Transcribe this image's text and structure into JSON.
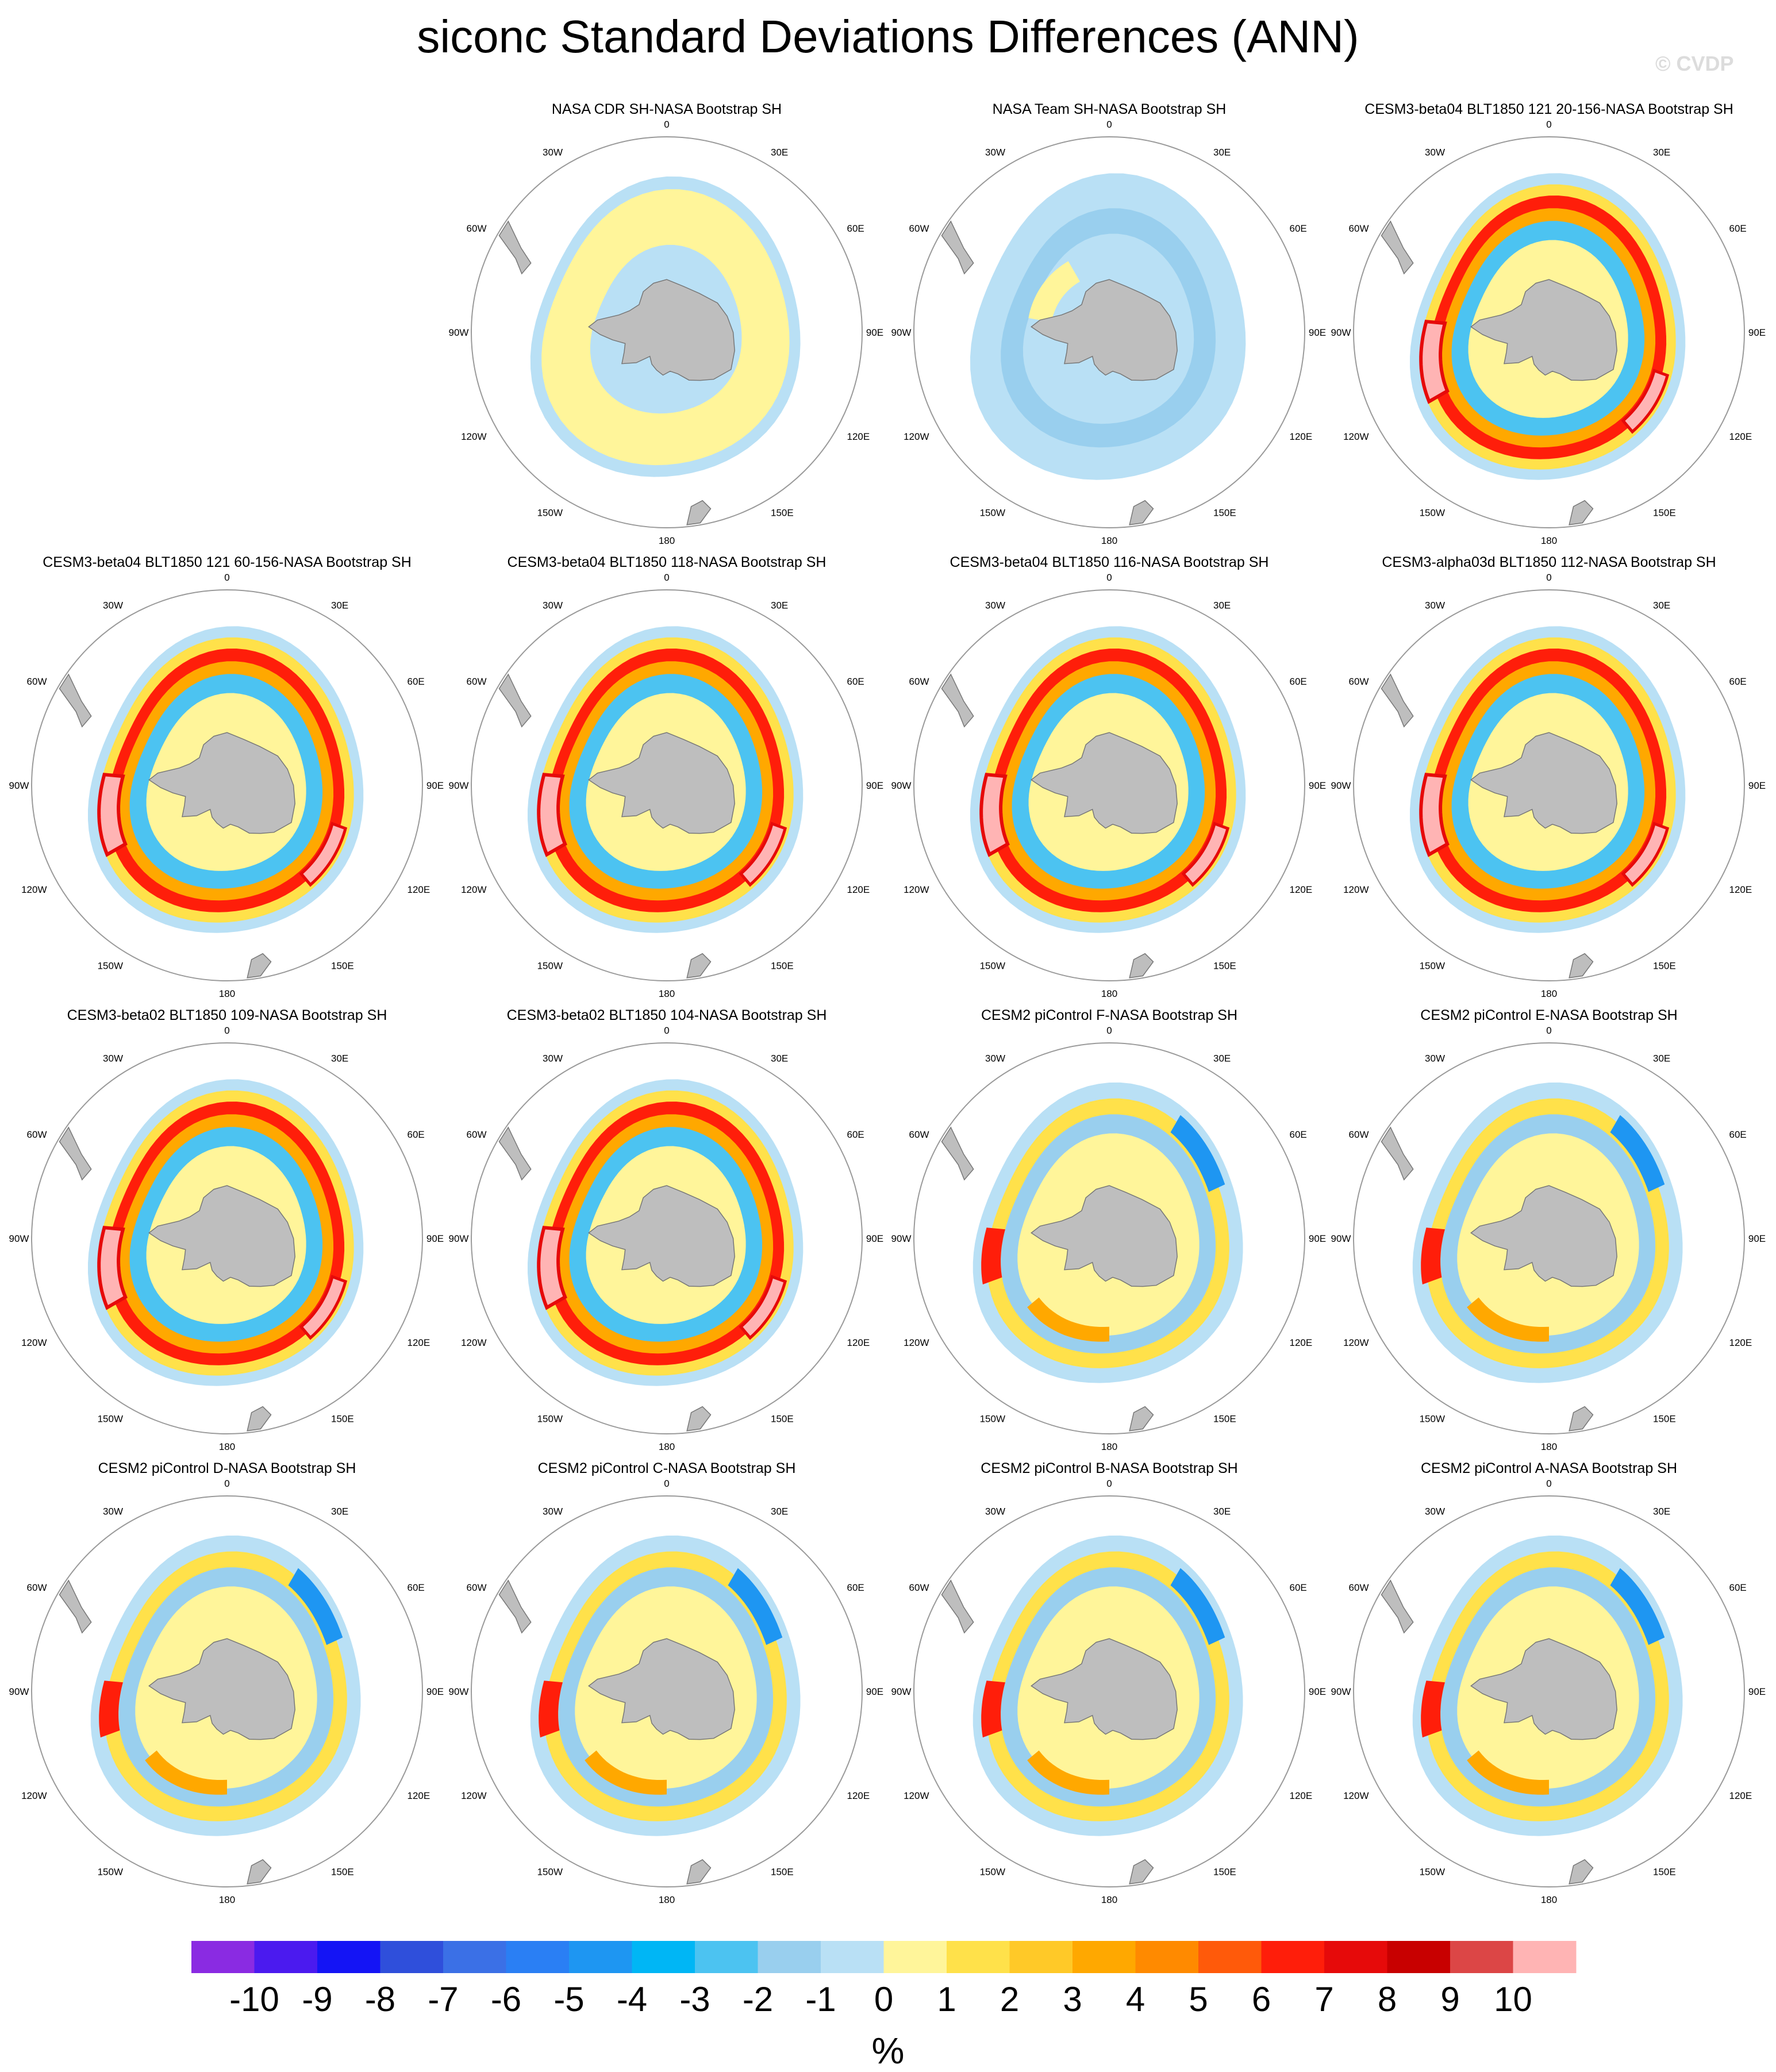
{
  "title": "siconc Standard Deviations Differences (ANN)",
  "watermark": "© CVDP",
  "units": "%",
  "colorbar": {
    "labels": [
      "-10",
      "-9",
      "-8",
      "-7",
      "-6",
      "-5",
      "-4",
      "-3",
      "-2",
      "-1",
      "0",
      "1",
      "2",
      "3",
      "4",
      "5",
      "6",
      "7",
      "8",
      "9",
      "10"
    ],
    "colors": [
      "#8a2be2",
      "#4b1aef",
      "#1414f5",
      "#2f4fdb",
      "#3b70e6",
      "#2a7ff4",
      "#1e96f2",
      "#00b6f5",
      "#4cc3f1",
      "#99cfee",
      "#b9e0f5",
      "#fff59a",
      "#ffe14a",
      "#ffc928",
      "#ffa800",
      "#ff8a00",
      "#ff5a0a",
      "#ff1e0a",
      "#e60a0a",
      "#c80000",
      "#dc4646",
      "#ffb4b4"
    ]
  },
  "chart_data": {
    "type": "heatmap",
    "projection": "south polar stereographic",
    "longitude_labels": [
      "0",
      "30E",
      "60E",
      "90E",
      "120E",
      "150E",
      "180",
      "150W",
      "120W",
      "90W",
      "60W",
      "30W"
    ],
    "value_range": [
      -10,
      10
    ],
    "panels": [
      {
        "title": "",
        "empty": true
      },
      {
        "title": "NASA CDR SH-NASA Bootstrap SH",
        "style": "obsA"
      },
      {
        "title": "NASA Team SH-NASA Bootstrap SH",
        "style": "obsB"
      },
      {
        "title": "CESM3-beta04 BLT1850 121 20-156-NASA Bootstrap SH",
        "style": "beta"
      },
      {
        "title": "CESM3-beta04 BLT1850 121 60-156-NASA Bootstrap SH",
        "style": "beta"
      },
      {
        "title": "CESM3-beta04 BLT1850 118-NASA Bootstrap SH",
        "style": "beta"
      },
      {
        "title": "CESM3-beta04 BLT1850 116-NASA Bootstrap SH",
        "style": "beta"
      },
      {
        "title": "CESM3-alpha03d BLT1850 112-NASA Bootstrap SH",
        "style": "beta"
      },
      {
        "title": "CESM3-beta02 BLT1850 109-NASA Bootstrap SH",
        "style": "beta"
      },
      {
        "title": "CESM3-beta02 BLT1850 104-NASA Bootstrap SH",
        "style": "beta"
      },
      {
        "title": "CESM2 piControl F-NASA Bootstrap SH",
        "style": "cesm2"
      },
      {
        "title": "CESM2 piControl E-NASA Bootstrap SH",
        "style": "cesm2"
      },
      {
        "title": "CESM2 piControl D-NASA Bootstrap SH",
        "style": "cesm2"
      },
      {
        "title": "CESM2 piControl C-NASA Bootstrap SH",
        "style": "cesm2"
      },
      {
        "title": "CESM2 piControl B-NASA Bootstrap SH",
        "style": "cesm2"
      },
      {
        "title": "CESM2 piControl A-NASA Bootstrap SH",
        "style": "cesm2"
      }
    ]
  }
}
